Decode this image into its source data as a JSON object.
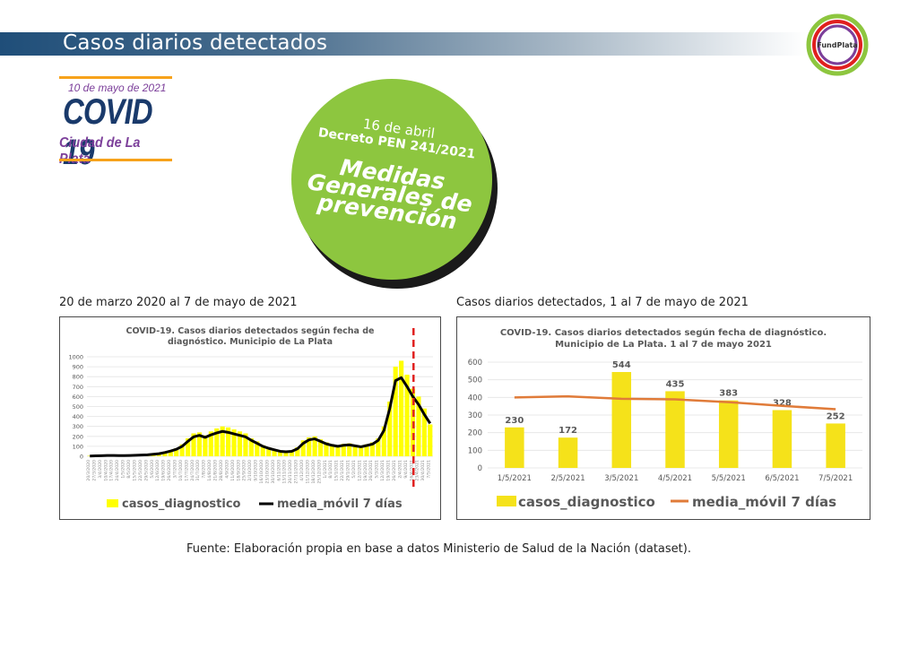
{
  "header": {
    "title": "Casos diarios detectados"
  },
  "logo_fundplata": {
    "text": "FundPlata"
  },
  "covid_logo": {
    "date": "10 de mayo de 2021",
    "title": "COVID 19",
    "city": "Ciudad de La Plata"
  },
  "circle": {
    "date": "16 de abril",
    "decreto": "Decreto PEN 241/2021",
    "line1": "Medidas",
    "line2": "Generales de",
    "line3": "prevención"
  },
  "left_panel": {
    "subtitle": "20 de marzo 2020 al 7 de mayo de 2021"
  },
  "right_panel": {
    "subtitle": "Casos diarios detectados, 1 al 7 de mayo de 2021"
  },
  "source": "Fuente: Elaboración propia en base a datos Ministerio de Salud de la Nación (dataset).",
  "colors": {
    "bar": "#ffff00",
    "bar_right": "#f5e21a",
    "line_left": "#000000",
    "line_right": "#e07b39",
    "marker": "#e0201f",
    "circle": "#8dc63f"
  },
  "chart_data": [
    {
      "type": "bar",
      "title_line1": "COVID-19. Casos diarios detectados según fecha de",
      "title_line2": "diagnóstico. Municipio de La Plata",
      "ylim": [
        0,
        1000
      ],
      "yticks": [
        "0",
        "100",
        "200",
        "300",
        "400",
        "500",
        "600",
        "700",
        "800",
        "900",
        "1000"
      ],
      "xtick_labels": [
        "20/3/2020",
        "27/3/2020",
        "3/4/2020",
        "10/4/2020",
        "17/4/2020",
        "24/4/2020",
        "1/5/2020",
        "8/5/2020",
        "15/5/2020",
        "22/5/2020",
        "29/5/2020",
        "5/6/2020",
        "12/6/2020",
        "19/6/2020",
        "26/6/2020",
        "3/7/2020",
        "10/7/2020",
        "17/7/2020",
        "24/7/2020",
        "31/7/2020",
        "7/8/2020",
        "14/8/2020",
        "21/8/2020",
        "28/8/2020",
        "4/9/2020",
        "11/9/2020",
        "18/9/2020",
        "25/9/2020",
        "2/10/2020",
        "9/10/2020",
        "16/10/2020",
        "23/10/2020",
        "30/10/2020",
        "6/11/2020",
        "13/11/2020",
        "20/11/2020",
        "27/11/2020",
        "4/12/2020",
        "11/12/2020",
        "18/12/2020",
        "25/12/2020",
        "1/1/2021",
        "8/1/2021",
        "15/1/2021",
        "22/1/2021",
        "29/1/2021",
        "5/2/2021",
        "12/2/2021",
        "19/2/2021",
        "26/2/2021",
        "5/3/2021",
        "12/3/2021",
        "19/3/2021",
        "26/3/2021",
        "2/4/2021",
        "9/4/2021",
        "16/4/2021",
        "23/4/2021",
        "30/4/2021",
        "7/5/2021"
      ],
      "marker_label": "16/4/2021",
      "series": [
        {
          "name": "casos_diagnostico",
          "kind": "bar",
          "values": [
            5,
            8,
            10,
            12,
            10,
            8,
            9,
            10,
            12,
            14,
            18,
            22,
            30,
            45,
            60,
            80,
            120,
            180,
            230,
            240,
            210,
            250,
            280,
            300,
            290,
            270,
            250,
            230,
            180,
            150,
            110,
            90,
            70,
            55,
            50,
            60,
            90,
            160,
            190,
            200,
            170,
            140,
            120,
            110,
            125,
            130,
            110,
            100,
            120,
            140,
            180,
            300,
            550,
            900,
            960,
            820,
            680,
            600,
            480,
            320
          ]
        },
        {
          "name": "media_móvil 7 días",
          "kind": "line",
          "values": [
            2,
            4,
            6,
            8,
            8,
            7,
            7,
            8,
            10,
            12,
            15,
            20,
            26,
            38,
            52,
            70,
            100,
            150,
            195,
            210,
            190,
            215,
            235,
            250,
            240,
            225,
            210,
            195,
            160,
            130,
            100,
            80,
            65,
            50,
            45,
            50,
            75,
            130,
            165,
            175,
            150,
            125,
            110,
            100,
            110,
            115,
            105,
            95,
            108,
            122,
            160,
            260,
            480,
            760,
            790,
            700,
            600,
            520,
            420,
            330
          ]
        }
      ]
    },
    {
      "type": "bar",
      "title_line1": "COVID-19. Casos diarios detectados según fecha de diagnóstico.",
      "title_line2": "Municipio de La Plata. 1 al 7 de mayo 2021",
      "ylim": [
        0,
        600
      ],
      "yticks": [
        "0",
        "100",
        "200",
        "300",
        "400",
        "500",
        "600"
      ],
      "categories": [
        "1/5/2021",
        "2/5/2021",
        "3/5/2021",
        "4/5/2021",
        "5/5/2021",
        "6/5/2021",
        "7/5/2021"
      ],
      "series": [
        {
          "name": "casos_diagnostico",
          "kind": "bar",
          "values": [
            230,
            172,
            544,
            435,
            383,
            328,
            252
          ]
        },
        {
          "name": "media_móvil 7 días",
          "kind": "line",
          "values": [
            400,
            406,
            392,
            389,
            373,
            352,
            333
          ]
        }
      ]
    }
  ]
}
